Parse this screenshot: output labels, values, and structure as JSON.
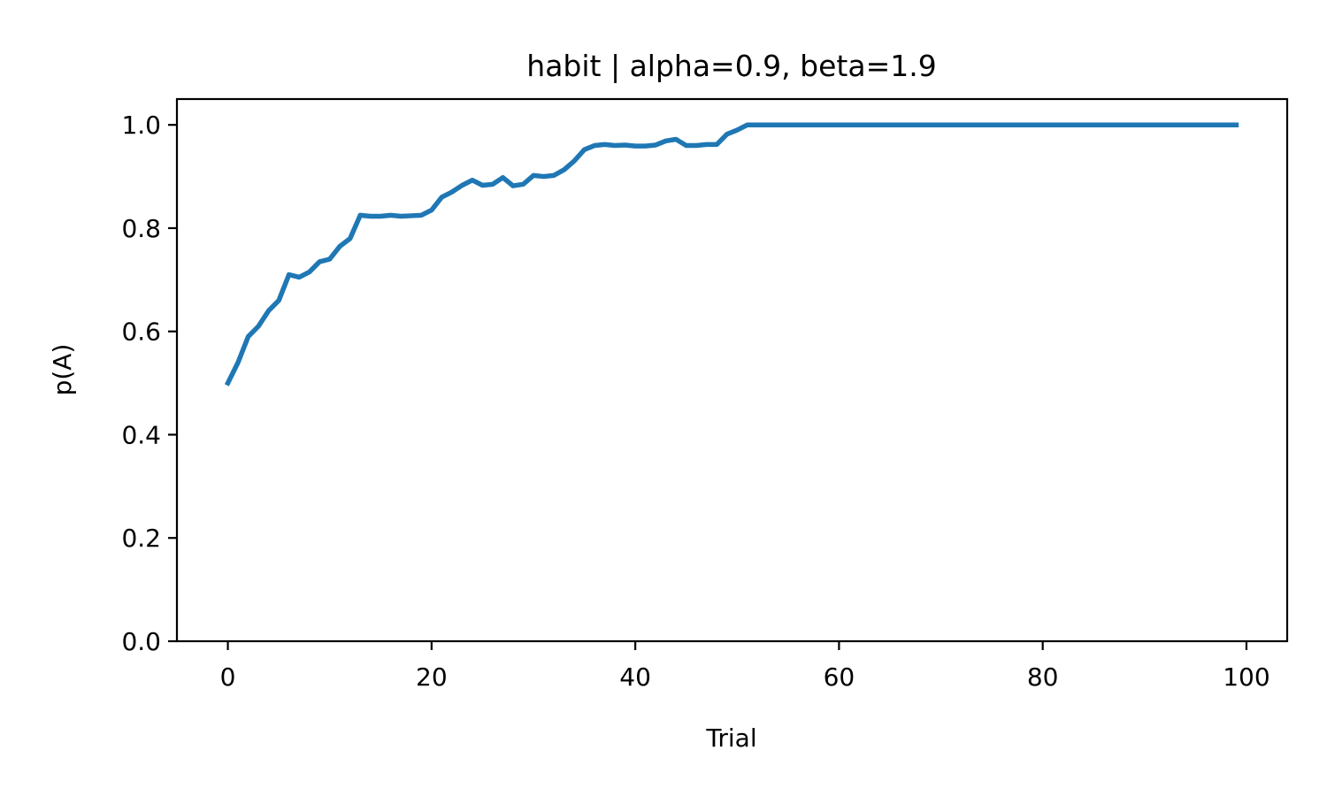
{
  "chart_data": {
    "type": "line",
    "title": "habit | alpha=0.9, beta=1.9",
    "xlabel": "Trial",
    "ylabel": "p(A)",
    "xlim": [
      -5,
      104
    ],
    "ylim": [
      0,
      1.05
    ],
    "xticks": [
      0,
      20,
      40,
      60,
      80,
      100
    ],
    "yticks": [
      0.0,
      0.2,
      0.4,
      0.6,
      0.8,
      1.0
    ],
    "xtick_labels": [
      "0",
      "20",
      "40",
      "60",
      "80",
      "100"
    ],
    "ytick_labels": [
      "0.0",
      "0.2",
      "0.4",
      "0.6",
      "0.8",
      "1.0"
    ],
    "grid": false,
    "line_color": "#1f77b4",
    "series": [
      {
        "x": [
          0,
          1,
          2,
          3,
          4,
          5,
          6,
          7,
          8,
          9,
          10,
          11,
          12,
          13,
          14,
          15,
          16,
          17,
          18,
          19,
          20,
          21,
          22,
          23,
          24,
          25,
          26,
          27,
          28,
          29,
          30,
          31,
          32,
          33,
          34,
          35,
          36,
          37,
          38,
          39,
          40,
          41,
          42,
          43,
          44,
          45,
          46,
          47,
          48,
          49,
          50,
          51,
          52,
          53,
          54,
          55,
          56,
          57,
          58,
          59,
          60,
          61,
          62,
          63,
          64,
          65,
          66,
          67,
          68,
          69,
          70,
          71,
          72,
          73,
          74,
          75,
          76,
          77,
          78,
          79,
          80,
          81,
          82,
          83,
          84,
          85,
          86,
          87,
          88,
          89,
          90,
          91,
          92,
          93,
          94,
          95,
          96,
          97,
          98,
          99
        ],
        "values": [
          0.5,
          0.54,
          0.59,
          0.61,
          0.64,
          0.66,
          0.71,
          0.705,
          0.715,
          0.735,
          0.74,
          0.765,
          0.78,
          0.825,
          0.823,
          0.823,
          0.825,
          0.823,
          0.824,
          0.825,
          0.835,
          0.86,
          0.87,
          0.883,
          0.893,
          0.883,
          0.885,
          0.898,
          0.882,
          0.885,
          0.902,
          0.9,
          0.902,
          0.913,
          0.93,
          0.952,
          0.96,
          0.962,
          0.96,
          0.961,
          0.959,
          0.959,
          0.961,
          0.969,
          0.972,
          0.96,
          0.96,
          0.962,
          0.962,
          0.982,
          0.99,
          1.0,
          1.0,
          1.0,
          1.0,
          1.0,
          1.0,
          1.0,
          1.0,
          1.0,
          1.0,
          1.0,
          1.0,
          1.0,
          1.0,
          1.0,
          1.0,
          1.0,
          1.0,
          1.0,
          1.0,
          1.0,
          1.0,
          1.0,
          1.0,
          1.0,
          1.0,
          1.0,
          1.0,
          1.0,
          1.0,
          1.0,
          1.0,
          1.0,
          1.0,
          1.0,
          1.0,
          1.0,
          1.0,
          1.0,
          1.0,
          1.0,
          1.0,
          1.0,
          1.0,
          1.0,
          1.0,
          1.0,
          1.0,
          1.0
        ]
      }
    ]
  }
}
